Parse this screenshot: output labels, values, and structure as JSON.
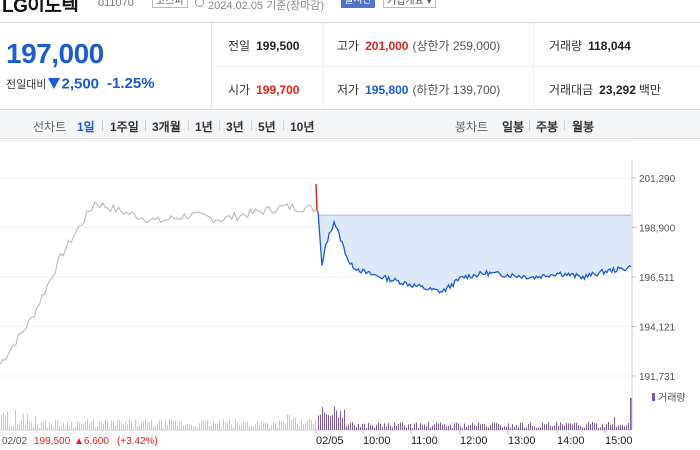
{
  "header": {
    "stock_name": "LG이노텍",
    "stock_code": "011070",
    "market": "코스피",
    "datetime": "2024.02.05 기준(장마감)",
    "realtime_button": "실시간",
    "company_info_button": "기업개요 ▾"
  },
  "quote": {
    "price": "197,000",
    "change_label": "전일대비",
    "change_value": "2,500",
    "change_pct": "-1.25%",
    "prev_close_label": "전일",
    "prev_close": "199,500",
    "high_label": "고가",
    "high": "201,000",
    "upper_limit": "(상한가 259,000)",
    "volume_label": "거래량",
    "volume": "118,044",
    "open_label": "시가",
    "open": "199,700",
    "low_label": "저가",
    "low": "195,800",
    "lower_limit": "(하한가 139,700)",
    "amount_label": "거래대금",
    "amount": "23,292",
    "amount_unit": "백만"
  },
  "toolbar": {
    "line_label": "선차트",
    "line_periods": [
      "1일",
      "1주일",
      "3개월",
      "1년",
      "3년",
      "5년",
      "10년"
    ],
    "active_period": "1일",
    "candle_label": "봉차트",
    "candle_periods": [
      "일봉",
      "주봉",
      "월봉"
    ]
  },
  "colors": {
    "down": "#1e5bd6",
    "up": "#e0231e",
    "prev_day_line": "#bdbdbd",
    "today_line": "#1e5bd6",
    "today_fill": "#dde9f9",
    "volume_today": "#7b5aa6",
    "volume_prev": "#c8c8c8"
  },
  "chart_data": {
    "type": "line",
    "y_ticks": [
      "201,290",
      "198,900",
      "196,511",
      "194,121",
      "191,731"
    ],
    "ylim": [
      191731,
      201290
    ],
    "x_ticks": [
      "02/05",
      "10:00",
      "11:00",
      "12:00",
      "13:00",
      "14:00",
      "15:00"
    ],
    "prev_day_caption": {
      "date": "02/02",
      "close": "199,500",
      "change": "▲6,600",
      "change_pct": "(+3.42%)"
    },
    "volume_legend": "거래량",
    "series": [
      {
        "x": [
          0,
          0.1,
          0.2,
          0.3,
          0.4,
          0.5,
          0.6,
          0.7,
          0.8,
          0.9,
          1.0
        ],
        "y": [
          192300,
          194500,
          197700,
          200100,
          199600,
          199200,
          199500,
          199300,
          199600,
          199900,
          199800
        ]
      },
      {
        "x": [
          "09:00",
          "09:05",
          "09:10",
          "09:20",
          "09:40",
          "10:00",
          "10:30",
          "11:00",
          "11:20",
          "11:35",
          "12:00",
          "12:30",
          "13:00",
          "13:30",
          "14:00",
          "14:30",
          "15:00",
          "15:20",
          "15:30"
        ],
        "y": [
          199700,
          197000,
          198100,
          199200,
          197100,
          196700,
          196400,
          196100,
          195900,
          195800,
          196500,
          196700,
          196600,
          196500,
          196700,
          196500,
          196800,
          196900,
          197000
        ]
      }
    ],
    "reference_price": 199500
  }
}
